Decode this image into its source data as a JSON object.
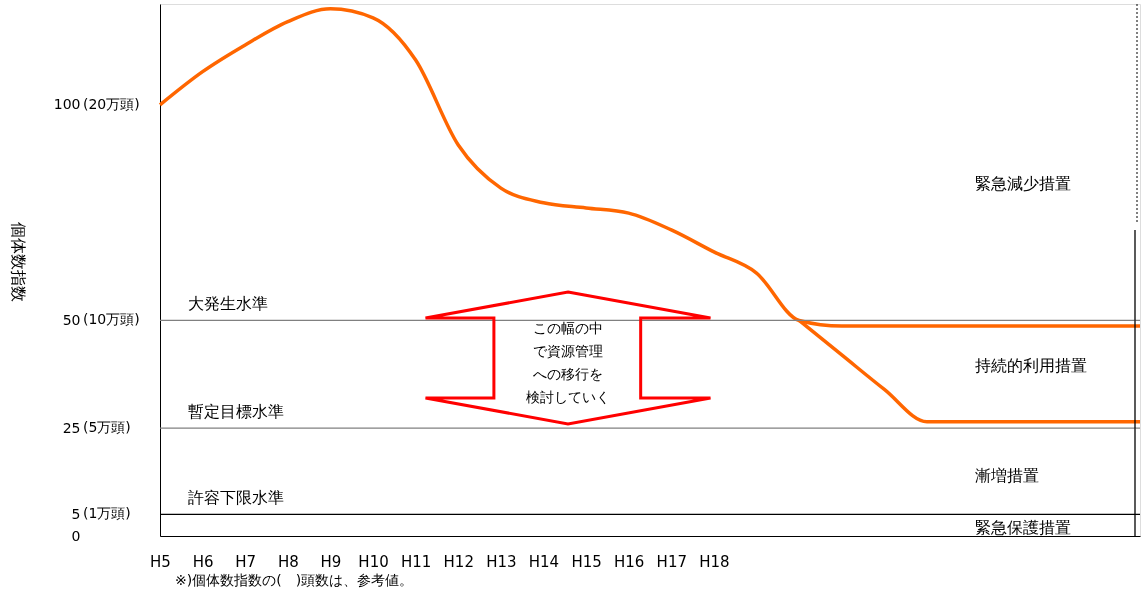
{
  "chart_data": {
    "type": "line",
    "ylabel": "個体数指数",
    "categories": [
      "H5",
      "H6",
      "H7",
      "H8",
      "H9",
      "H10",
      "H11",
      "H12",
      "H13",
      "H14",
      "H15",
      "H16",
      "H17",
      "H18",
      null,
      null,
      null,
      null,
      null,
      null,
      null,
      null,
      null,
      null
    ],
    "series": [
      {
        "color": "#ff6600",
        "values": [
          100,
          107.7,
          113.9,
          119.3,
          122.3,
          120.2,
          110.4,
          90.7,
          80.7,
          77.3,
          76.1,
          74.9,
          71,
          65.9,
          61,
          50,
          48.7,
          48.7,
          48.7,
          48.7,
          48.7,
          48.7,
          48.7,
          48.7
        ]
      },
      {
        "color": "#ff6600",
        "values": [
          null,
          null,
          null,
          null,
          null,
          null,
          null,
          null,
          null,
          null,
          null,
          null,
          null,
          null,
          null,
          50,
          42,
          34,
          26.5,
          26.5,
          26.5,
          26.5,
          26.5,
          26.5
        ]
      }
    ],
    "ylim": [
      0,
      123.4
    ],
    "yticks": [
      0,
      5,
      25,
      50,
      100
    ],
    "ref_lines": [
      {
        "axis": "y",
        "value": 50,
        "label": "大発生水準",
        "color": "#808080"
      },
      {
        "axis": "y",
        "value": 25,
        "label": "暫定目標水準",
        "color": "#808080"
      },
      {
        "axis": "y",
        "value": 5,
        "label": "許容下限水準",
        "color": "#000000"
      }
    ],
    "annotations": [
      "※)個体数指数の(　)頭数は、参考値。",
      "緊急減少措置",
      "持続的利用措置",
      "漸増措置",
      "緊急保護措置",
      "この幅の中で資源管理への移行を検討していく",
      "(20万頭)",
      "(10万頭)",
      "(5万頭)",
      "(1万頭)"
    ],
    "line_style": "solid"
  }
}
